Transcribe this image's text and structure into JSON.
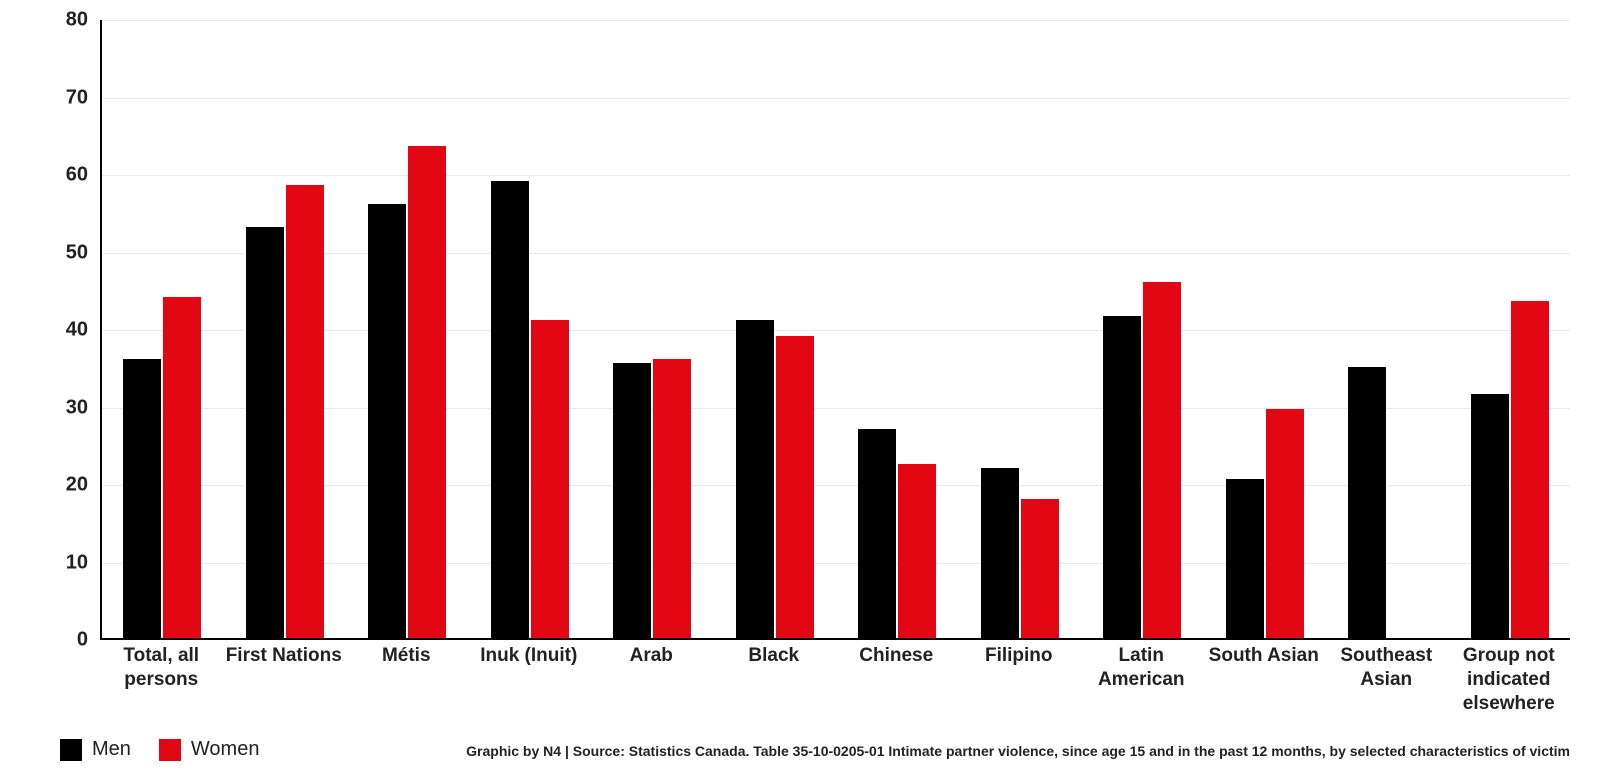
{
  "chart": {
    "type": "bar",
    "background_color": "#ffffff",
    "grid_color": "#e8e8e8",
    "axis_color": "#000000",
    "ylim": [
      0,
      80
    ],
    "ytick_step": 10,
    "yticks": [
      0,
      10,
      20,
      30,
      40,
      50,
      60,
      70,
      80
    ],
    "bar_group_gap_ratio": 0.35,
    "series": [
      {
        "key": "men",
        "label": "Men",
        "color": "#000000"
      },
      {
        "key": "women",
        "label": "Women",
        "color": "#e30613"
      }
    ],
    "categories": [
      {
        "label": "Total, all persons",
        "men": 36,
        "women": 44
      },
      {
        "label": "First Nations",
        "men": 53,
        "women": 58.5
      },
      {
        "label": "Métis",
        "men": 56,
        "women": 63.5
      },
      {
        "label": "Inuk (Inuit)",
        "men": 59,
        "women": 41
      },
      {
        "label": "Arab",
        "men": 35.5,
        "women": 36
      },
      {
        "label": "Black",
        "men": 41,
        "women": 39
      },
      {
        "label": "Chinese",
        "men": 27,
        "women": 22.5
      },
      {
        "label": "Filipino",
        "men": 22,
        "women": 18
      },
      {
        "label": "Latin American",
        "men": 41.5,
        "women": 46
      },
      {
        "label": "South Asian",
        "men": 20.5,
        "women": 29.5
      },
      {
        "label": "Southeast Asian",
        "men": 35,
        "women": null
      },
      {
        "label": "Group not indicated elsewhere",
        "men": 31.5,
        "women": 43.5
      }
    ],
    "tick_label_fontsize": 20,
    "xlabel_fontsize": 19,
    "xlabel_fontweight": 700
  },
  "legend": {
    "items": [
      {
        "label": "Men",
        "color": "#000000"
      },
      {
        "label": "Women",
        "color": "#e30613"
      }
    ]
  },
  "source_line": "Graphic by N4 | Source: Statistics Canada. Table 35-10-0205-01  Intimate partner violence, since age 15 and in the past 12 months, by selected characteristics of victim"
}
